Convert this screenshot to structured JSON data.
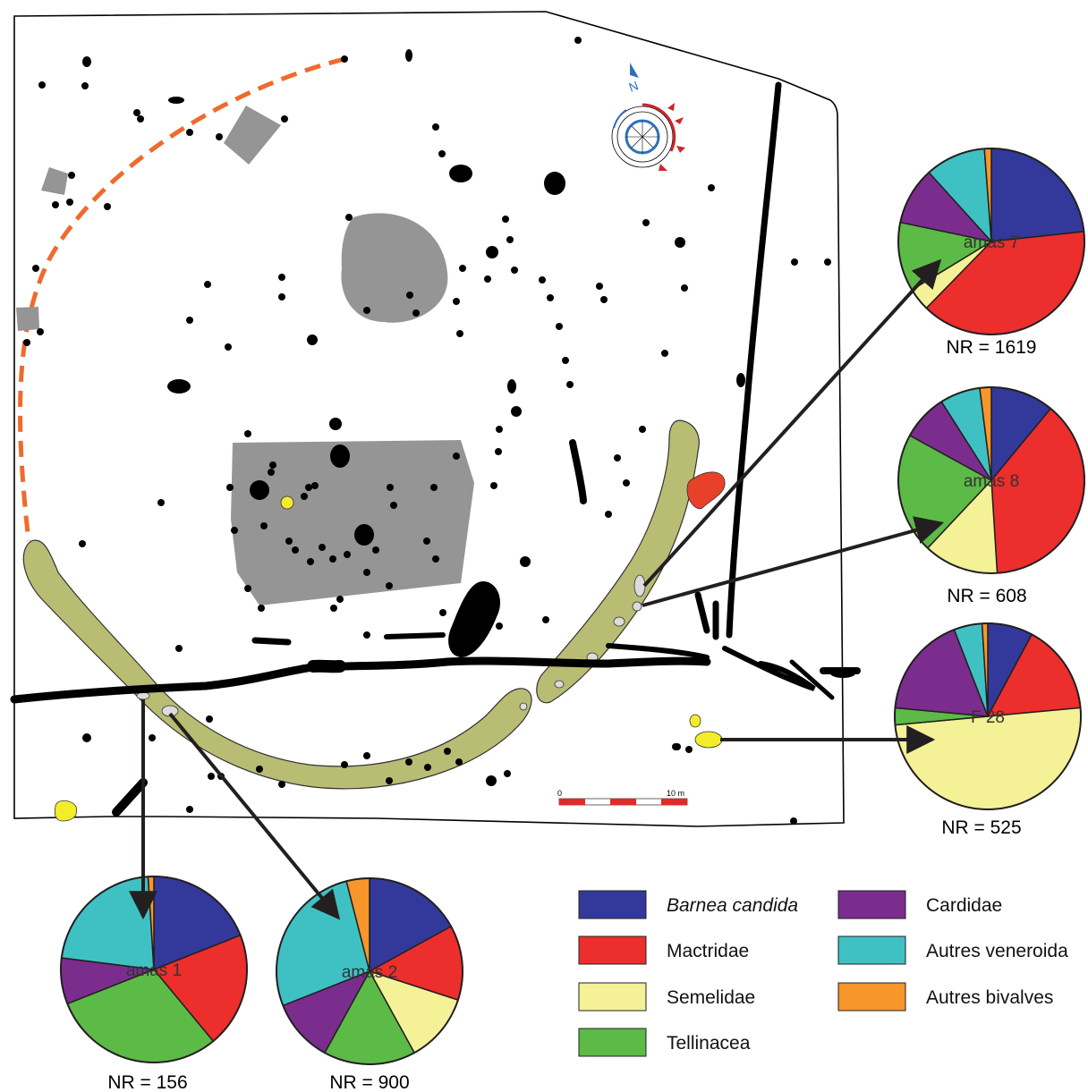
{
  "colors": {
    "barnea": "#33399a",
    "mactridae": "#ec2e2c",
    "semelidae": "#f4f197",
    "tellinacea": "#5cba47",
    "cardidae": "#7b2d8e",
    "veneroida": "#3fc1c4",
    "bivalves": "#f6962b",
    "feature_gray": "#959595",
    "ring_ditch": "#b9bd73",
    "dashed_enclosure": "#ee6b2d",
    "hearth_red": "#e8412a",
    "pit_yellow": "#f2ec2b"
  },
  "map": {
    "north_label": "N",
    "scale_start": "0",
    "scale_end": "10 m"
  },
  "pies": [
    {
      "id": "amas7",
      "label": "amas 7",
      "nr": "NR = 1619",
      "shares": [
        0.233,
        0.39,
        0.04,
        0.12,
        0.1,
        0.105,
        0.012
      ]
    },
    {
      "id": "amas8",
      "label": "amas 8",
      "nr": "NR = 608",
      "shares": [
        0.11,
        0.38,
        0.13,
        0.21,
        0.08,
        0.07,
        0.02
      ]
    },
    {
      "id": "f28",
      "label": "F 28",
      "nr": "NR = 525",
      "shares": [
        0.08,
        0.16,
        0.51,
        0.03,
        0.18,
        0.05,
        0.01
      ]
    },
    {
      "id": "amas1",
      "label": "amas 1",
      "nr": "NR = 156",
      "shares": [
        0.19,
        0.2,
        0.0,
        0.3,
        0.08,
        0.22,
        0.01
      ]
    },
    {
      "id": "amas2",
      "label": "amas 2",
      "nr": "NR = 900",
      "shares": [
        0.17,
        0.13,
        0.12,
        0.16,
        0.11,
        0.27,
        0.04
      ]
    }
  ],
  "legend": [
    {
      "key": "barnea",
      "label": "Barnea candida",
      "italic": true
    },
    {
      "key": "mactridae",
      "label": "Mactridae",
      "italic": false
    },
    {
      "key": "semelidae",
      "label": "Semelidae",
      "italic": false
    },
    {
      "key": "tellinacea",
      "label": "Tellinacea",
      "italic": false
    },
    {
      "key": "cardidae",
      "label": "Cardidae",
      "italic": false
    },
    {
      "key": "veneroida",
      "label": "Autres veneroida",
      "italic": false
    },
    {
      "key": "bivalves",
      "label": "Autres bivalves",
      "italic": false
    }
  ]
}
